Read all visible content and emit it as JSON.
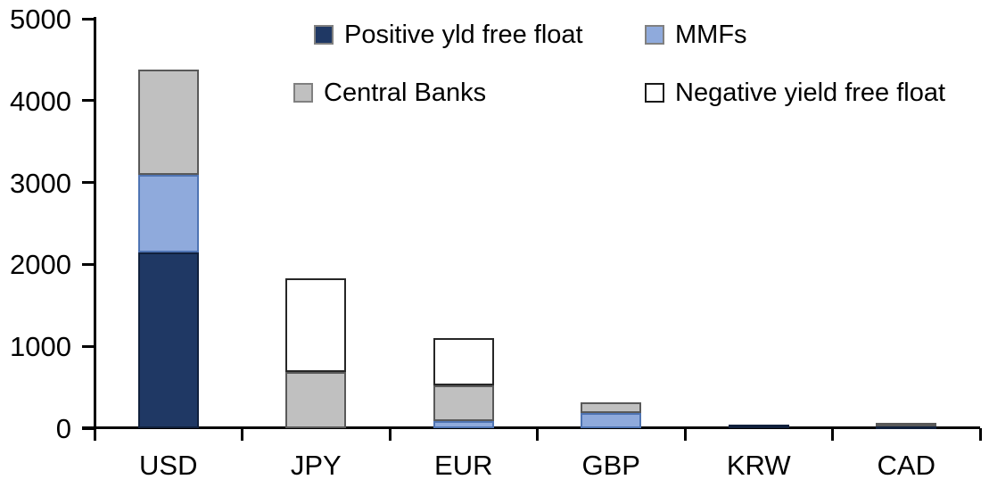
{
  "chart_data": {
    "type": "bar",
    "stacked": true,
    "title": "",
    "xlabel": "",
    "ylabel": "",
    "categories": [
      "USD",
      "JPY",
      "EUR",
      "GBP",
      "KRW",
      "CAD"
    ],
    "series": [
      {
        "name": "Positive yld free float",
        "key": "positive",
        "color": "#1F3864",
        "border": "#10203c",
        "values": [
          2150,
          0,
          0,
          0,
          40,
          35
        ]
      },
      {
        "name": "MMFs",
        "key": "mmfs",
        "color": "#8FAADC",
        "border": "#4f74b3",
        "values": [
          940,
          0,
          90,
          190,
          0,
          0
        ]
      },
      {
        "name": "Central Banks",
        "key": "central",
        "color": "#C0C0C0",
        "border": "#595959",
        "values": [
          1290,
          690,
          430,
          130,
          0,
          25
        ]
      },
      {
        "name": "Negative yield free float",
        "key": "negative",
        "color": "#FFFFFF",
        "border": "#262626",
        "values": [
          0,
          1140,
          580,
          0,
          0,
          0
        ]
      }
    ],
    "totals": [
      4380,
      1830,
      1100,
      320,
      40,
      60
    ],
    "ylim": [
      0,
      5000
    ],
    "yticks": [
      0,
      1000,
      2000,
      3000,
      4000,
      5000
    ],
    "ytick_labels": [
      "0",
      "1000",
      "2000",
      "3000",
      "4000",
      "5000"
    ],
    "grid": false,
    "legend_position": "top",
    "legend_order": [
      "positive",
      "mmfs",
      "central",
      "negative"
    ]
  },
  "legend": {
    "positive": {
      "label": "Positive yld free float"
    },
    "mmfs": {
      "label": "MMFs"
    },
    "central": {
      "label": "Central Banks"
    },
    "negative": {
      "label": "Negative yield free float"
    }
  },
  "colors": {
    "axis": "#000000",
    "background": "#FFFFFF",
    "positive": "#1F3864",
    "mmfs": "#8FAADC",
    "central": "#C0C0C0",
    "negative": "#FFFFFF"
  }
}
